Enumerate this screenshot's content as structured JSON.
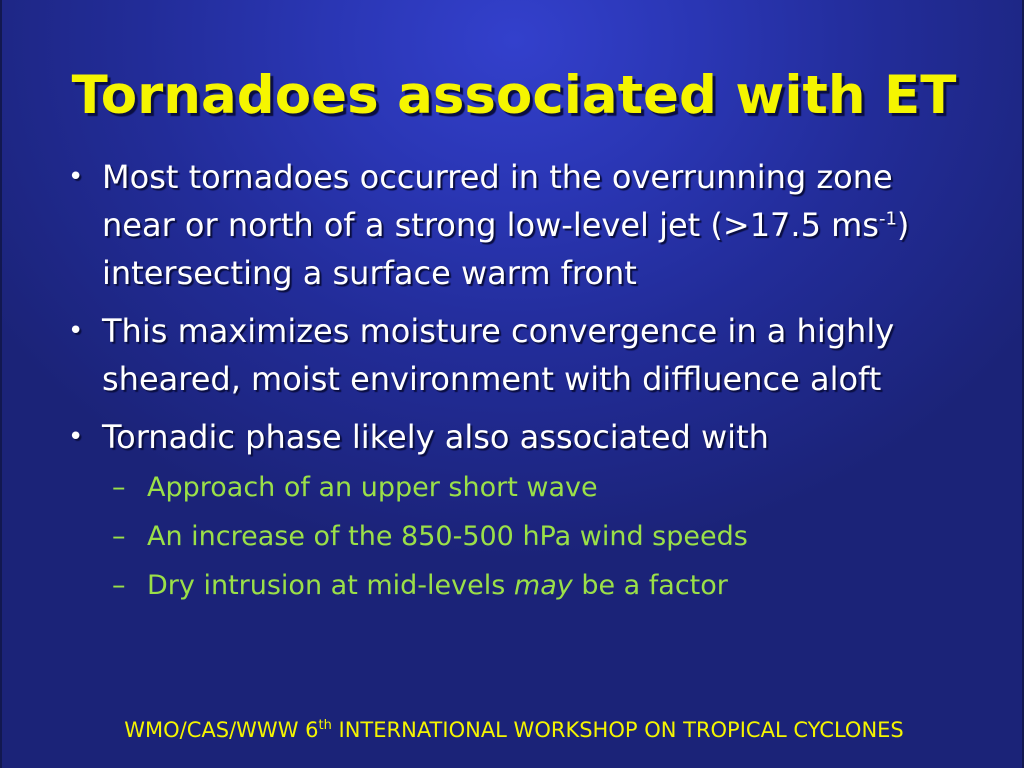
{
  "slide": {
    "title": "Tornadoes associated with ET",
    "bullets": [
      {
        "bullet_char": "•",
        "text_before_sup": "Most tornadoes occurred in the overrunning zone near or north of a strong low-level jet (>17.5 ms",
        "sup": "-1",
        "text_after_sup": ") intersecting a surface warm front"
      },
      {
        "bullet_char": "•",
        "text": "This maximizes moisture convergence in a highly sheared, moist environment with diffluence aloft"
      },
      {
        "bullet_char": "•",
        "text": "Tornadic phase likely also associated with",
        "sub_items": [
          {
            "dash": "–",
            "text": "Approach of an upper short wave"
          },
          {
            "dash": "–",
            "text": "An increase of the 850-500 hPa wind speeds"
          },
          {
            "dash": "–",
            "text_before": "Dry intrusion at mid-levels ",
            "emphasis": "may",
            "text_after": " be a factor"
          }
        ]
      }
    ],
    "footer": {
      "text_before_sup": "WMO/CAS/WWW 6",
      "sup": "th",
      "text_after_sup": " INTERNATIONAL WORKSHOP ON TROPICAL CYCLONES"
    }
  },
  "colors": {
    "background": "#222c98",
    "title": "#f5f500",
    "body_text": "#ffffff",
    "sub_text": "#9be048",
    "footer": "#f5f500"
  }
}
